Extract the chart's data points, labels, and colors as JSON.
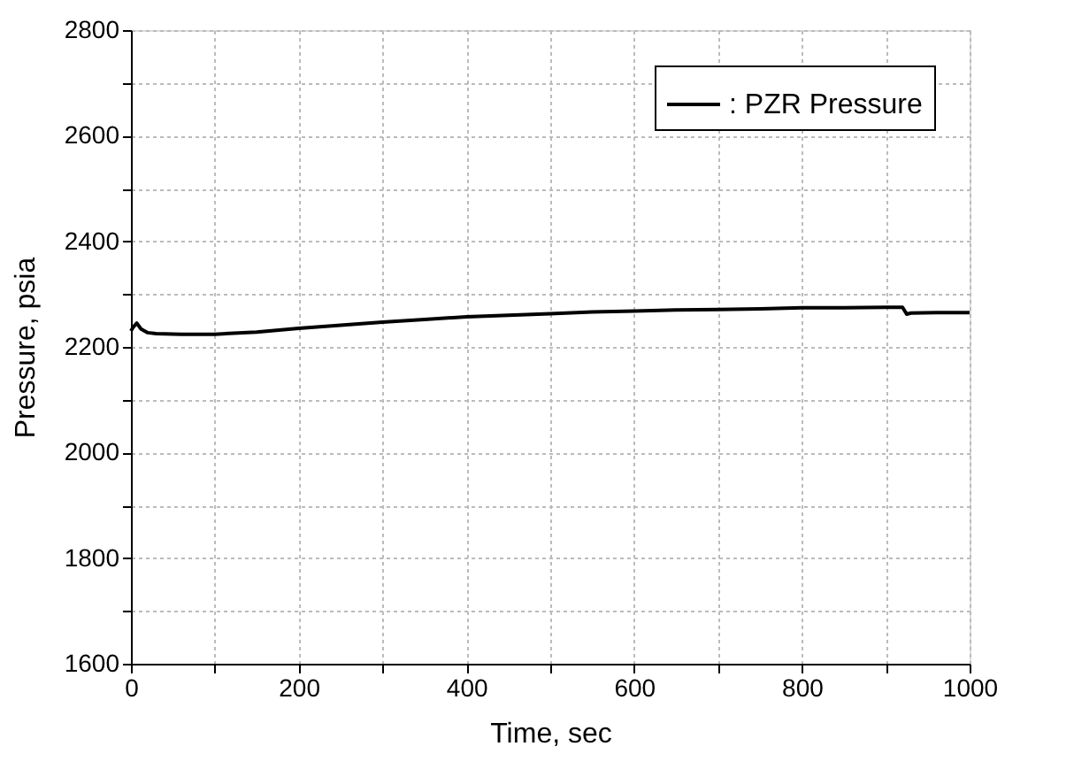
{
  "chart_data": {
    "type": "line",
    "xlabel": "Time, sec",
    "ylabel": "Pressure, psia",
    "xlim": [
      0,
      1000
    ],
    "ylim": [
      1600,
      2800
    ],
    "xticks": [
      0,
      {
        "value": 100,
        "label": null
      },
      200,
      {
        "value": 300,
        "label": null
      },
      400,
      {
        "value": 500,
        "label": null
      },
      600,
      {
        "value": 700,
        "label": null
      },
      800,
      {
        "value": 900,
        "label": null
      },
      1000
    ],
    "yticks": [
      1600,
      {
        "value": 1700,
        "label": null
      },
      1800,
      {
        "value": 1900,
        "label": null
      },
      2000,
      {
        "value": 2100,
        "label": null
      },
      2200,
      {
        "value": 2300,
        "label": null
      },
      2400,
      {
        "value": 2500,
        "label": null
      },
      2600,
      {
        "value": 2700,
        "label": null
      },
      2800
    ],
    "grid": true,
    "legend": "top right",
    "line_style": "solid",
    "marker": "none",
    "series": [
      {
        "name": ": PZR Pressure",
        "color": "#000000",
        "x": [
          0,
          3,
          7,
          12,
          20,
          30,
          60,
          100,
          150,
          200,
          250,
          300,
          350,
          400,
          450,
          500,
          550,
          600,
          650,
          700,
          750,
          800,
          850,
          900,
          920,
          925,
          930,
          960,
          1000
        ],
        "values": [
          2230,
          2238,
          2245,
          2234,
          2227,
          2225,
          2224,
          2224,
          2228,
          2235,
          2241,
          2247,
          2252,
          2257,
          2260,
          2263,
          2266,
          2268,
          2270,
          2271,
          2272,
          2274,
          2274,
          2275,
          2275,
          2262,
          2264,
          2265,
          2265
        ]
      }
    ]
  }
}
